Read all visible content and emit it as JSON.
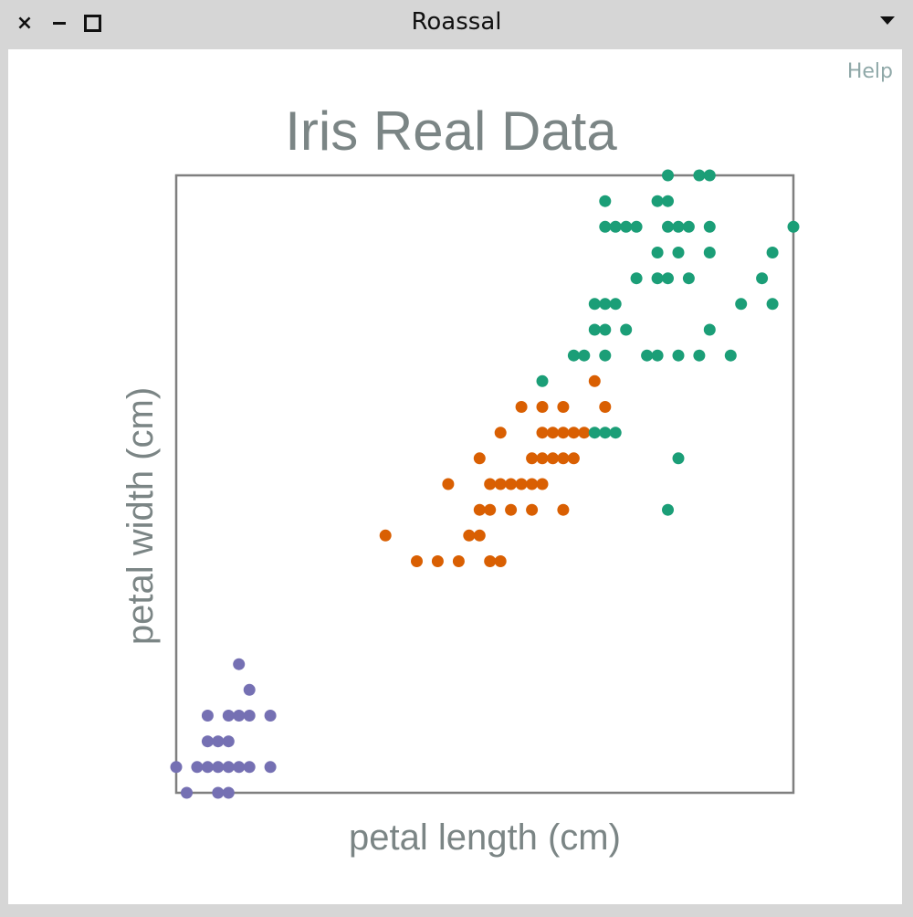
{
  "window": {
    "title": "Roassal",
    "close_icon": "close-icon",
    "minimize_icon": "minimize-icon",
    "maximize_icon": "maximize-icon",
    "menu_icon": "chevron-down-icon"
  },
  "canvas": {
    "help_label": "Help"
  },
  "chart_data": {
    "type": "scatter",
    "title": "Iris Real Data",
    "xlabel": "petal length (cm)",
    "ylabel": "petal width (cm)",
    "xlim": [
      1.0,
      6.9
    ],
    "ylim": [
      0.1,
      2.5
    ],
    "grid": false,
    "legend": "none",
    "series": [
      {
        "color": "#7570b3",
        "points": [
          [
            1.0,
            0.2
          ],
          [
            1.1,
            0.1
          ],
          [
            1.2,
            0.2
          ],
          [
            1.3,
            0.2
          ],
          [
            1.3,
            0.3
          ],
          [
            1.3,
            0.4
          ],
          [
            1.4,
            0.1
          ],
          [
            1.4,
            0.2
          ],
          [
            1.4,
            0.3
          ],
          [
            1.5,
            0.1
          ],
          [
            1.5,
            0.2
          ],
          [
            1.5,
            0.3
          ],
          [
            1.5,
            0.4
          ],
          [
            1.6,
            0.2
          ],
          [
            1.6,
            0.4
          ],
          [
            1.6,
            0.6
          ],
          [
            1.7,
            0.2
          ],
          [
            1.7,
            0.4
          ],
          [
            1.7,
            0.5
          ],
          [
            1.9,
            0.2
          ],
          [
            1.9,
            0.4
          ]
        ]
      },
      {
        "color": "#d95f02",
        "points": [
          [
            3.0,
            1.1
          ],
          [
            3.3,
            1.0
          ],
          [
            3.5,
            1.0
          ],
          [
            3.7,
            1.0
          ],
          [
            3.6,
            1.3
          ],
          [
            3.8,
            1.1
          ],
          [
            3.9,
            1.1
          ],
          [
            3.9,
            1.4
          ],
          [
            3.9,
            1.2
          ],
          [
            4.0,
            1.0
          ],
          [
            4.0,
            1.2
          ],
          [
            4.0,
            1.3
          ],
          [
            4.1,
            1.0
          ],
          [
            4.1,
            1.3
          ],
          [
            4.1,
            1.5
          ],
          [
            4.2,
            1.2
          ],
          [
            4.2,
            1.3
          ],
          [
            4.3,
            1.3
          ],
          [
            4.3,
            1.6
          ],
          [
            4.4,
            1.2
          ],
          [
            4.4,
            1.3
          ],
          [
            4.4,
            1.4
          ],
          [
            4.5,
            1.3
          ],
          [
            4.5,
            1.4
          ],
          [
            4.5,
            1.5
          ],
          [
            4.5,
            1.6
          ],
          [
            4.6,
            1.4
          ],
          [
            4.6,
            1.5
          ],
          [
            4.7,
            1.2
          ],
          [
            4.7,
            1.4
          ],
          [
            4.7,
            1.5
          ],
          [
            4.7,
            1.6
          ],
          [
            4.8,
            1.4
          ],
          [
            4.8,
            1.5
          ],
          [
            4.9,
            1.5
          ],
          [
            5.0,
            1.7
          ],
          [
            5.1,
            1.6
          ]
        ]
      },
      {
        "color": "#1b9e77",
        "points": [
          [
            4.5,
            1.7
          ],
          [
            4.8,
            1.8
          ],
          [
            4.9,
            1.8
          ],
          [
            5.0,
            1.9
          ],
          [
            5.0,
            2.0
          ],
          [
            5.0,
            1.5
          ],
          [
            5.1,
            1.5
          ],
          [
            5.1,
            1.8
          ],
          [
            5.1,
            1.9
          ],
          [
            5.1,
            2.0
          ],
          [
            5.1,
            2.3
          ],
          [
            5.1,
            2.4
          ],
          [
            5.2,
            1.5
          ],
          [
            5.2,
            2.0
          ],
          [
            5.2,
            2.3
          ],
          [
            5.3,
            1.9
          ],
          [
            5.3,
            2.3
          ],
          [
            5.4,
            2.1
          ],
          [
            5.4,
            2.3
          ],
          [
            5.5,
            1.8
          ],
          [
            5.6,
            1.8
          ],
          [
            5.6,
            2.1
          ],
          [
            5.6,
            2.2
          ],
          [
            5.6,
            2.4
          ],
          [
            5.7,
            1.2
          ],
          [
            5.7,
            2.1
          ],
          [
            5.7,
            2.3
          ],
          [
            5.7,
            2.4
          ],
          [
            5.7,
            2.5
          ],
          [
            5.8,
            1.4
          ],
          [
            5.8,
            1.8
          ],
          [
            5.8,
            2.2
          ],
          [
            5.8,
            2.3
          ],
          [
            5.9,
            2.1
          ],
          [
            5.9,
            2.3
          ],
          [
            6.0,
            1.8
          ],
          [
            6.0,
            2.5
          ],
          [
            6.1,
            1.9
          ],
          [
            6.1,
            2.2
          ],
          [
            6.1,
            2.3
          ],
          [
            6.1,
            2.5
          ],
          [
            6.3,
            1.8
          ],
          [
            6.4,
            2.0
          ],
          [
            6.6,
            2.1
          ],
          [
            6.7,
            2.0
          ],
          [
            6.7,
            2.2
          ],
          [
            6.9,
            2.3
          ]
        ]
      }
    ]
  }
}
